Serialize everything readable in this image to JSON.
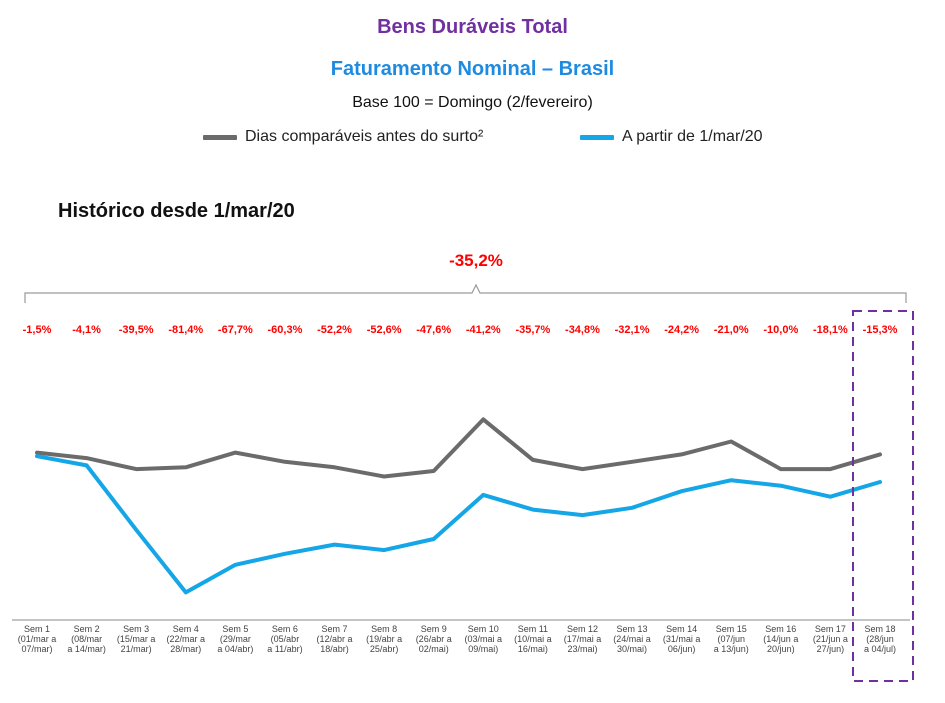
{
  "titles": {
    "main": "Bens Duráveis Total",
    "sub": "Faturamento Nominal – Brasil",
    "base": "Base 100 = Domingo (2/fevereiro)"
  },
  "section_title": "Histórico desde 1/mar/20",
  "colors": {
    "purple": "#7030a0",
    "blue_title": "#1f8be0",
    "gray_series": "#6b6b6b",
    "blue_series": "#14a6e6",
    "red_label": "#ff0000",
    "highlight": "#7030a0"
  },
  "chart_data": {
    "type": "line",
    "categories": [
      [
        "Sem 1",
        "(01/mar a",
        "07/mar)"
      ],
      [
        "Sem 2",
        "(08/mar",
        "a 14/mar)"
      ],
      [
        "Sem 3",
        "(15/mar a",
        "21/mar)"
      ],
      [
        "Sem 4",
        "(22/mar a",
        "28/mar)"
      ],
      [
        "Sem 5",
        "(29/mar",
        "a 04/abr)"
      ],
      [
        "Sem 6",
        "(05/abr",
        "a 11/abr)"
      ],
      [
        "Sem 7",
        "(12/abr a",
        "18/abr)"
      ],
      [
        "Sem 8",
        "(19/abr a",
        "25/abr)"
      ],
      [
        "Sem 9",
        "(26/abr a",
        "02/mai)"
      ],
      [
        "Sem 10",
        "(03/mai a",
        "09/mai)"
      ],
      [
        "Sem 11",
        "(10/mai a",
        "16/mai)"
      ],
      [
        "Sem 12",
        "(17/mai a",
        "23/mai)"
      ],
      [
        "Sem 13",
        "(24/mai a",
        "30/mai)"
      ],
      [
        "Sem 14",
        "(31/mai a",
        "06/jun)"
      ],
      [
        "Sem 15",
        "(07/jun",
        "a 13/jun)"
      ],
      [
        "Sem 16",
        "(14/jun a",
        "20/jun)"
      ],
      [
        "Sem 17",
        "(21/jun a",
        "27/jun)"
      ],
      [
        "Sem 18",
        "(28/jun",
        "a 04/jul)"
      ]
    ],
    "series": [
      {
        "name": "Dias comparáveis antes do surto²",
        "color": "#6b6b6b",
        "values": [
          91,
          88,
          82,
          83,
          91,
          86,
          83,
          78,
          81,
          109,
          87,
          82,
          86,
          90,
          97,
          82,
          82,
          90
        ]
      },
      {
        "name": "A partir de 1/mar/20",
        "color": "#14a6e6",
        "values": [
          89,
          84,
          49,
          15,
          30,
          36,
          41,
          38,
          44,
          68,
          60,
          57,
          61,
          70,
          76,
          73,
          67,
          75
        ]
      }
    ],
    "data_labels": [
      "-1,5%",
      "-4,1%",
      "-39,5%",
      "-81,4%",
      "-67,7%",
      "-60,3%",
      "-52,2%",
      "-52,6%",
      "-47,6%",
      "-41,2%",
      "-35,7%",
      "-34,8%",
      "-32,1%",
      "-24,2%",
      "-21,0%",
      "-10,0%",
      "-18,1%",
      "-15,3%"
    ],
    "summary_label": "-35,2%",
    "highlighted_category": "Sem 18",
    "ylim": [
      0,
      150
    ],
    "grid": false,
    "legend_position": "top"
  }
}
